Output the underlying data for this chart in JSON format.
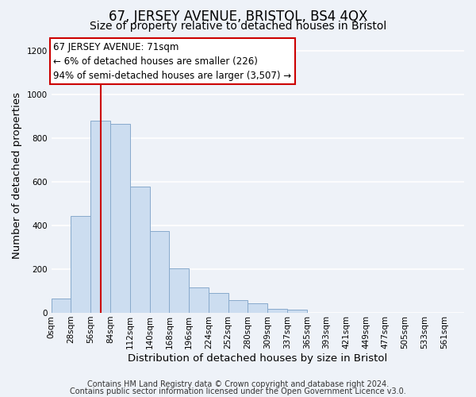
{
  "title": "67, JERSEY AVENUE, BRISTOL, BS4 4QX",
  "subtitle": "Size of property relative to detached houses in Bristol",
  "xlabel": "Distribution of detached houses by size in Bristol",
  "ylabel": "Number of detached properties",
  "bar_labels": [
    "0sqm",
    "28sqm",
    "56sqm",
    "84sqm",
    "112sqm",
    "140sqm",
    "168sqm",
    "196sqm",
    "224sqm",
    "252sqm",
    "280sqm",
    "309sqm",
    "337sqm",
    "365sqm",
    "393sqm",
    "421sqm",
    "449sqm",
    "477sqm",
    "505sqm",
    "533sqm",
    "561sqm"
  ],
  "bar_heights": [
    65,
    445,
    880,
    865,
    580,
    375,
    205,
    115,
    90,
    60,
    45,
    20,
    15,
    0,
    0,
    0,
    0,
    0,
    0,
    0,
    0
  ],
  "bar_color": "#ccddf0",
  "bar_edge_color": "#88aacc",
  "red_line_x": 71,
  "bin_width": 28,
  "ylim": [
    0,
    1260
  ],
  "annotation_text": "67 JERSEY AVENUE: 71sqm\n← 6% of detached houses are smaller (226)\n94% of semi-detached houses are larger (3,507) →",
  "annotation_box_color": "#ffffff",
  "annotation_box_edgecolor": "#cc0000",
  "red_line_color": "#cc0000",
  "footer_line1": "Contains HM Land Registry data © Crown copyright and database right 2024.",
  "footer_line2": "Contains public sector information licensed under the Open Government Licence v3.0.",
  "background_color": "#eef2f8",
  "grid_color": "#ffffff",
  "title_fontsize": 12,
  "subtitle_fontsize": 10,
  "axis_label_fontsize": 9.5,
  "tick_fontsize": 7.5,
  "annotation_fontsize": 8.5,
  "footer_fontsize": 7
}
